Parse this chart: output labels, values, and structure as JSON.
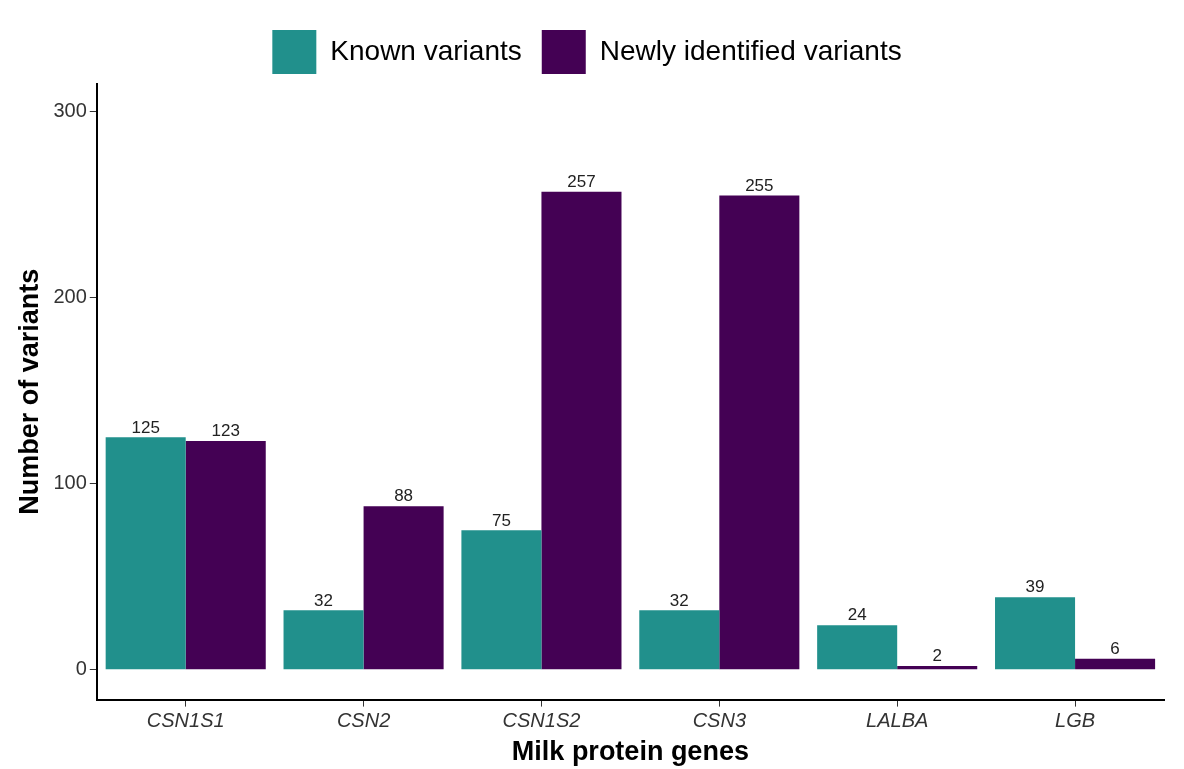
{
  "chart_data": {
    "type": "bar",
    "xlabel": "Milk protein genes",
    "ylabel": "Number of variants",
    "categories": [
      "CSN1S1",
      "CSN2",
      "CSN1S2",
      "CSN3",
      "LALBA",
      "LGB"
    ],
    "series": [
      {
        "name": "Known variants",
        "color": "#21908c",
        "values": [
          125,
          32,
          75,
          32,
          24,
          39
        ]
      },
      {
        "name": "Newly identified variants",
        "color": "#440154",
        "values": [
          123,
          88,
          257,
          255,
          2,
          6
        ]
      }
    ],
    "ylim": [
      -16,
      315
    ],
    "yticks": [
      0,
      100,
      200,
      300
    ],
    "grid": false,
    "legend": "top",
    "data_labels": true
  }
}
